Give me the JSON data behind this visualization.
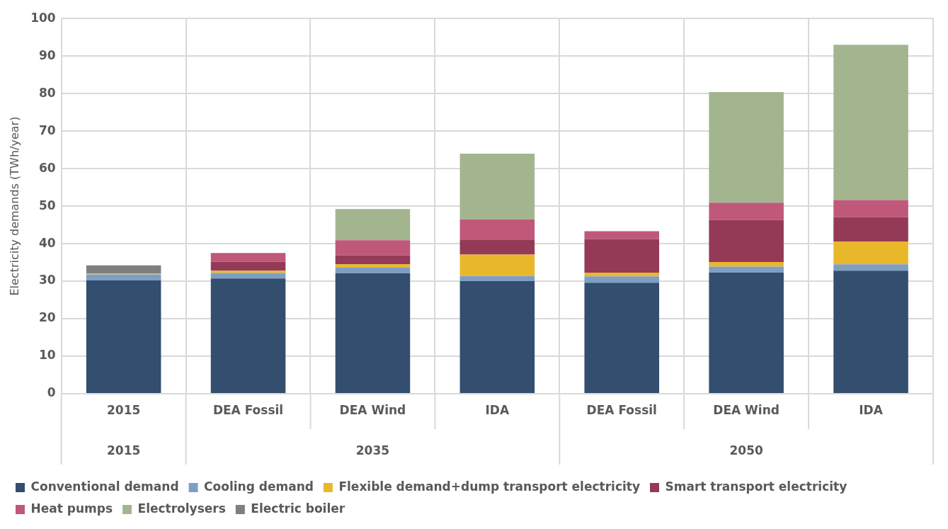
{
  "chart_data": {
    "type": "bar",
    "stacked": true,
    "ylabel": "Electricity demands (TWh/year)",
    "categories": [
      "2015",
      "DEA Fossil",
      "DEA Wind",
      "IDA",
      "DEA Fossil",
      "DEA Wind",
      "IDA"
    ],
    "annotations": [
      "2015",
      "2035",
      "2050"
    ],
    "series": [
      {
        "name": "Conventional demand",
        "color": "#334e6e",
        "values": [
          30.2,
          30.7,
          32.1,
          30.0,
          29.6,
          32.3,
          32.8
        ]
      },
      {
        "name": "Cooling demand",
        "color": "#7f9ec4",
        "values": [
          1.6,
          1.5,
          1.5,
          1.4,
          1.7,
          1.6,
          1.7
        ]
      },
      {
        "name": "Flexible demand+dump transport electricity",
        "color": "#e8b82a",
        "values": [
          0.2,
          0.6,
          0.9,
          5.7,
          1.0,
          1.2,
          6.1
        ]
      },
      {
        "name": "Smart transport electricity",
        "color": "#943a57",
        "values": [
          0,
          2.4,
          2.4,
          4.0,
          8.9,
          11.2,
          6.5
        ]
      },
      {
        "name": "Heat pumps",
        "color": "#c0587a",
        "values": [
          0,
          2.3,
          4.0,
          5.4,
          2.1,
          4.6,
          4.5
        ]
      },
      {
        "name": "Electrolysers",
        "color": "#a3b58f",
        "values": [
          0,
          0,
          8.3,
          17.5,
          0,
          29.5,
          41.4
        ]
      },
      {
        "name": "Electric boiler",
        "color": "#7f7f7f",
        "values": [
          2.2,
          0,
          0,
          0,
          0,
          0,
          0
        ]
      }
    ],
    "ylim": [
      0,
      100
    ],
    "yticks": [
      0,
      10,
      20,
      30,
      40,
      50,
      60,
      70,
      80,
      90,
      100
    ],
    "grid": true,
    "legend": "bottom"
  }
}
